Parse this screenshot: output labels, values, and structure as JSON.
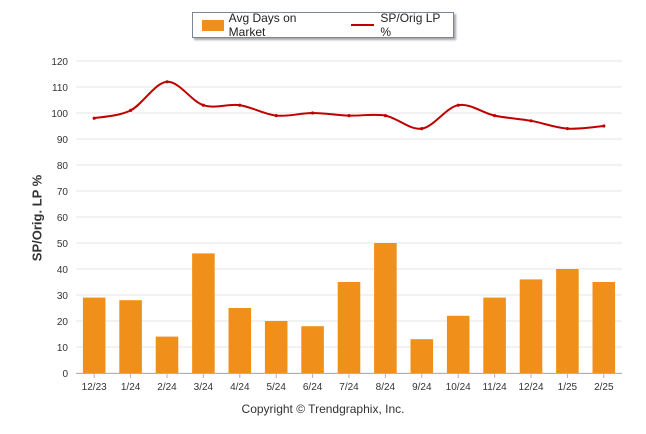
{
  "legend": {
    "bar_label": "Avg Days on Market",
    "line_label": "SP/Orig LP %"
  },
  "footer": {
    "copyright": "Copyright © Trendgraphix, Inc."
  },
  "colors": {
    "bar": "#f0901a",
    "line": "#c00000",
    "grid": "#e4e4e4"
  },
  "chart_data": {
    "type": "bar",
    "title": "",
    "xlabel": "",
    "ylabel": "SP/Orig. LP %",
    "ylim": [
      0,
      120
    ],
    "yticks": [
      0,
      10,
      20,
      30,
      40,
      50,
      60,
      70,
      80,
      90,
      100,
      110,
      120
    ],
    "grid": true,
    "legend_position": "top-center",
    "categories": [
      "12/23",
      "1/24",
      "2/24",
      "3/24",
      "4/24",
      "5/24",
      "6/24",
      "7/24",
      "8/24",
      "9/24",
      "10/24",
      "11/24",
      "12/24",
      "1/25",
      "2/25"
    ],
    "series": [
      {
        "name": "Avg Days on Market",
        "type": "bar",
        "values": [
          29,
          28,
          14,
          46,
          25,
          20,
          18,
          35,
          50,
          13,
          22,
          29,
          36,
          40,
          35
        ]
      },
      {
        "name": "SP/Orig LP %",
        "type": "line",
        "values": [
          98,
          101,
          112,
          103,
          103,
          99,
          100,
          99,
          99,
          94,
          103,
          99,
          97,
          94,
          95
        ]
      }
    ]
  }
}
